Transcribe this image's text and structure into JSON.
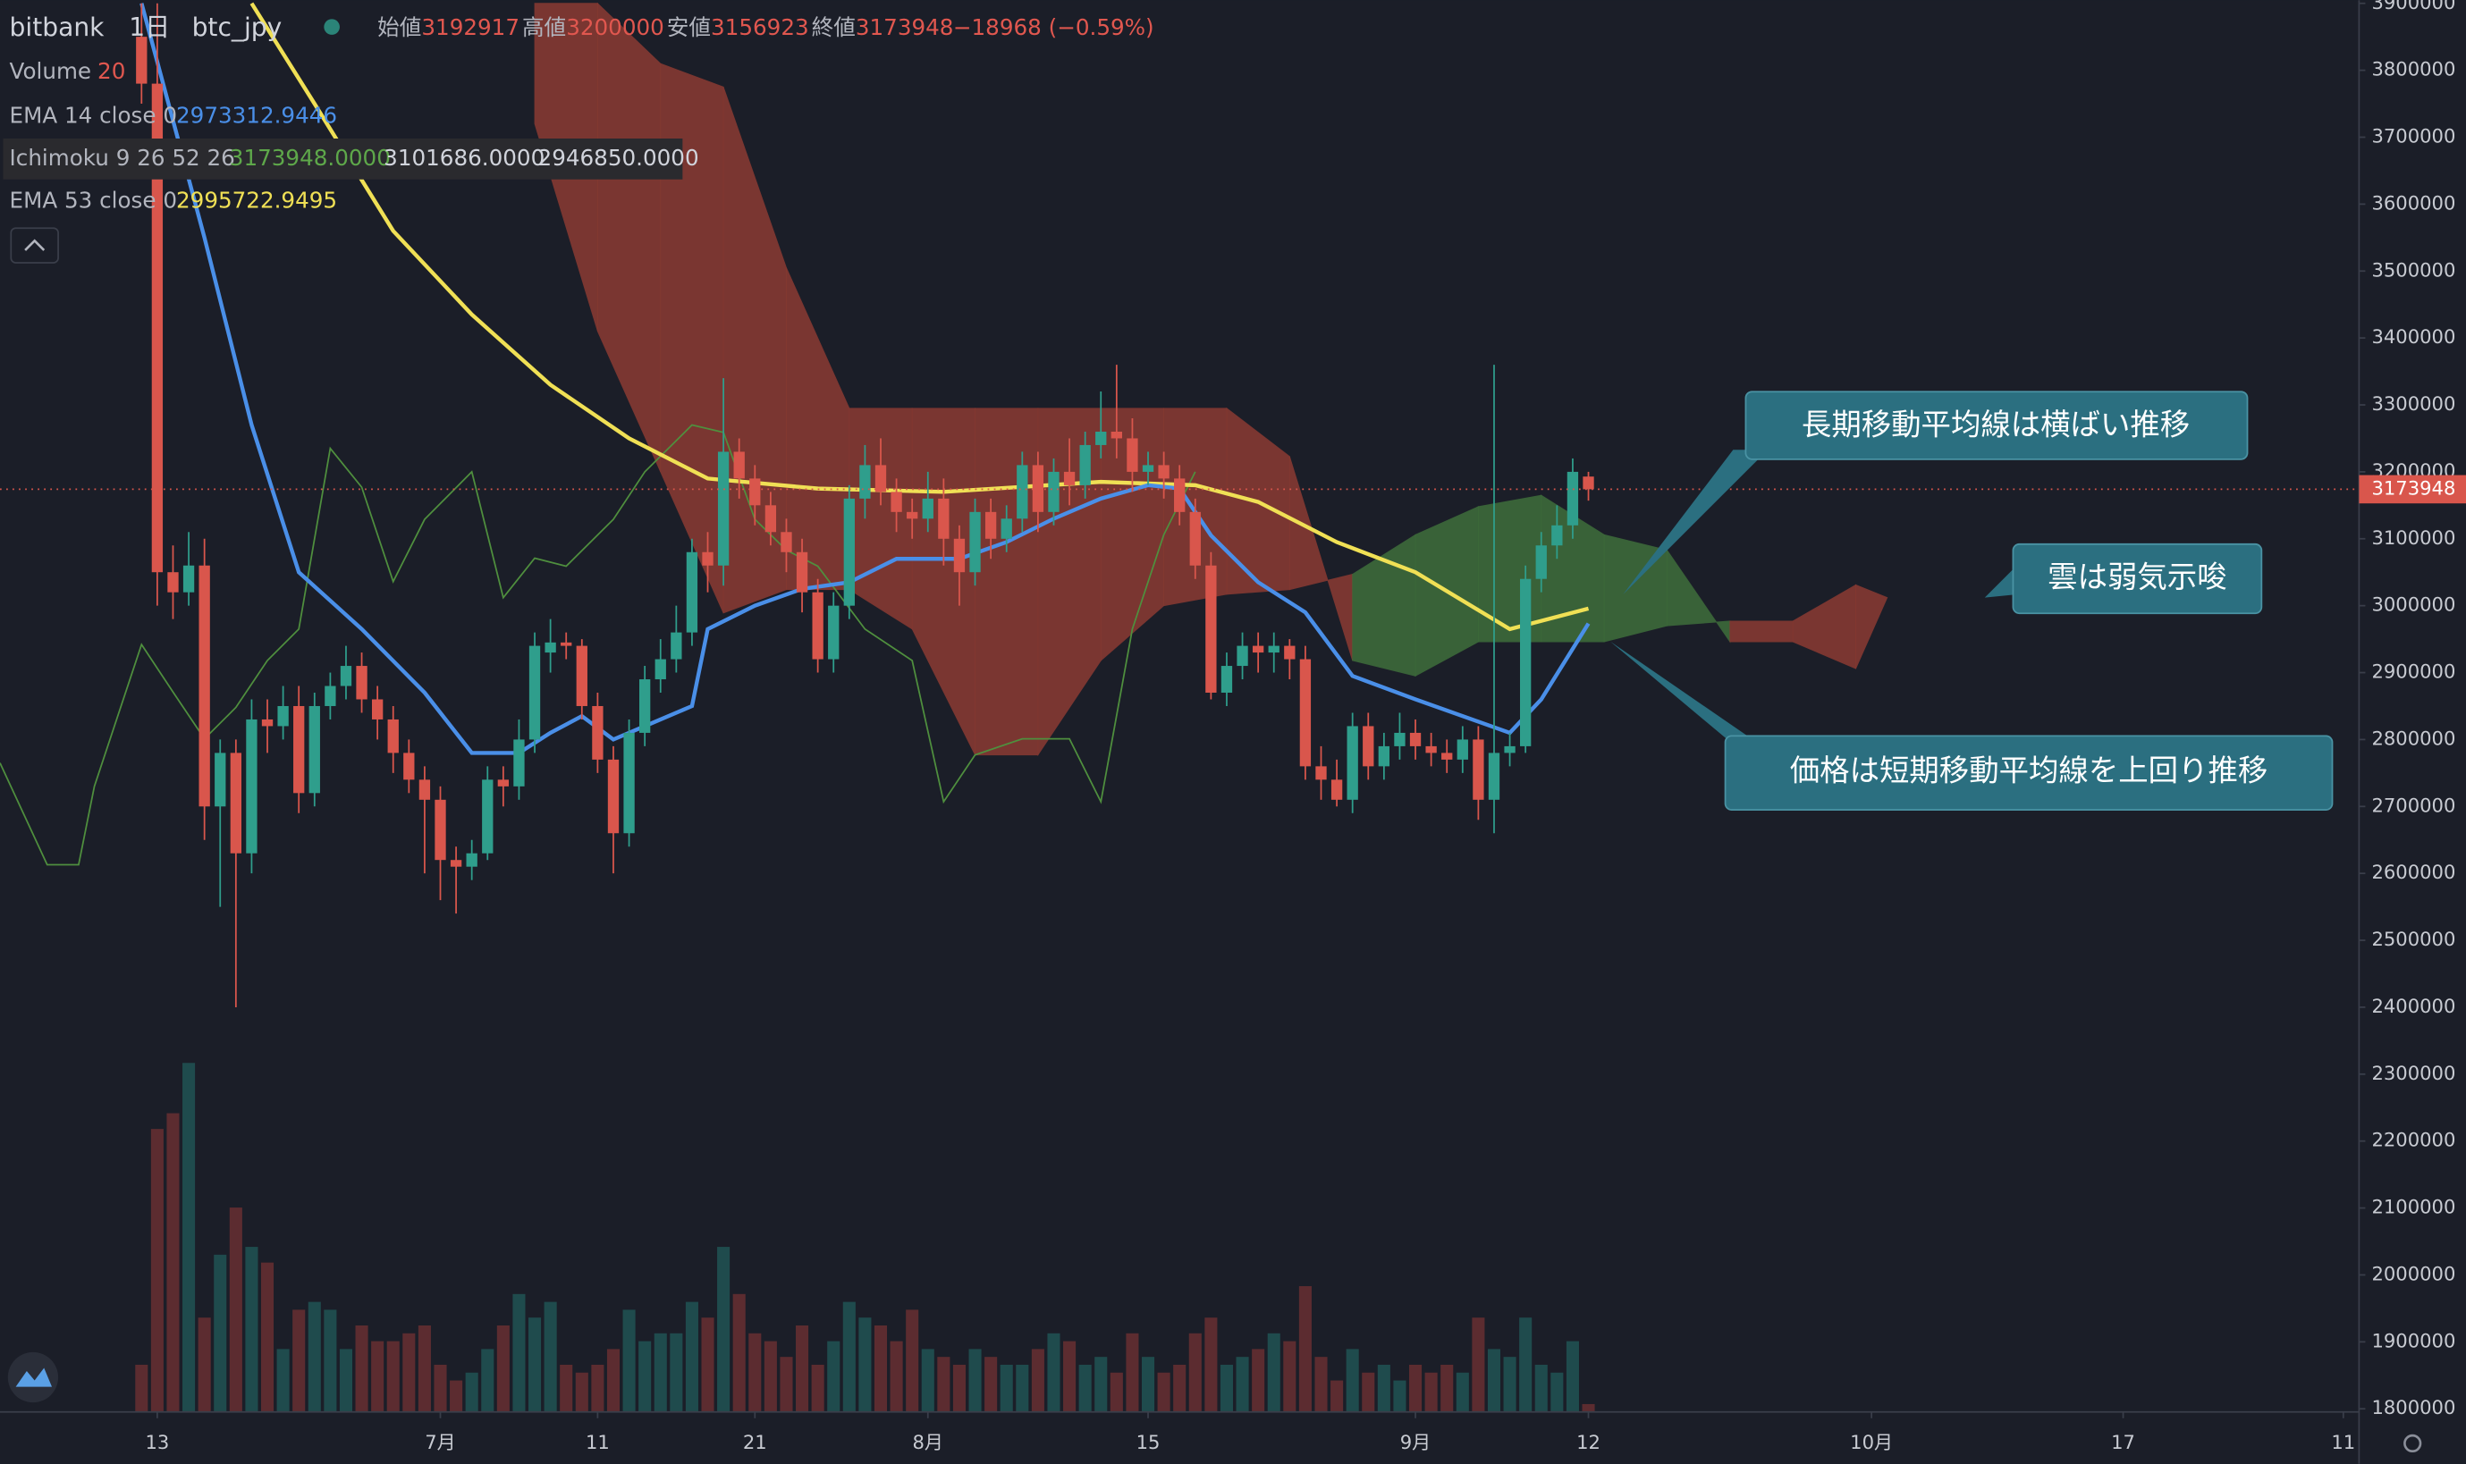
{
  "chart_data": {
    "type": "candlestick",
    "exchange": "bitbank",
    "interval": "1日",
    "symbol": "btc_jpy",
    "ohlc_labels": [
      "始値",
      "高値",
      "安値",
      "終値"
    ],
    "change": "−18968 (−0.59%)",
    "up_color": "#2f9e8c",
    "down_color": "#d9564c",
    "x": [
      0,
      1,
      2,
      3,
      4,
      5,
      6,
      7,
      8,
      9,
      10,
      11,
      12,
      13,
      14,
      15,
      16,
      17,
      18,
      19,
      20,
      21,
      22,
      23,
      24,
      25,
      26,
      27,
      28,
      29,
      30,
      31,
      32,
      33,
      34,
      35,
      36,
      37,
      38,
      39,
      40,
      41,
      42,
      43,
      44,
      45,
      46,
      47,
      48,
      49,
      50,
      51,
      52,
      53,
      54,
      55,
      56,
      57,
      58,
      59,
      60,
      61,
      62,
      63,
      64,
      65,
      66,
      67,
      68,
      69,
      70,
      71,
      72,
      73,
      74,
      75,
      76,
      77,
      78,
      79,
      80,
      81,
      82,
      83,
      84,
      85,
      86,
      87,
      88,
      89,
      90,
      91,
      92
    ],
    "open": [
      3850000,
      3780000,
      3050000,
      3020000,
      3060000,
      2700000,
      2780000,
      2630000,
      2830000,
      2820000,
      2850000,
      2720000,
      2850000,
      2880000,
      2910000,
      2860000,
      2830000,
      2780000,
      2740000,
      2710000,
      2620000,
      2610000,
      2630000,
      2740000,
      2730000,
      2800000,
      2930000,
      2945000,
      2940000,
      2850000,
      2770000,
      2660000,
      2810000,
      2890000,
      2920000,
      2960000,
      3080000,
      3060000,
      3230000,
      3190000,
      3150000,
      3110000,
      3080000,
      3020000,
      2920000,
      3000000,
      3160000,
      3210000,
      3170000,
      3140000,
      3130000,
      3160000,
      3100000,
      3050000,
      3140000,
      3100000,
      3130000,
      3210000,
      3140000,
      3200000,
      3180000,
      3240000,
      3260000,
      3250000,
      3200000,
      3210000,
      3190000,
      3140000,
      3060000,
      2870000,
      2910000,
      2940000,
      2930000,
      2940000,
      2920000,
      2760000,
      2740000,
      2710000,
      2820000,
      2760000,
      2790000,
      2810000,
      2790000,
      2780000,
      2770000,
      2800000,
      2710000,
      2780000,
      2790000,
      3040000,
      3090000,
      3120000,
      3192917
    ],
    "high": [
      3900000,
      3900000,
      3090000,
      3110000,
      3100000,
      2800000,
      2800000,
      2860000,
      2860000,
      2880000,
      2880000,
      2870000,
      2900000,
      2940000,
      2930000,
      2880000,
      2850000,
      2800000,
      2760000,
      2730000,
      2640000,
      2650000,
      2760000,
      2760000,
      2830000,
      2960000,
      2980000,
      2960000,
      2950000,
      2870000,
      2790000,
      2830000,
      2910000,
      2950000,
      3000000,
      3100000,
      3110000,
      3340000,
      3250000,
      3210000,
      3170000,
      3130000,
      3100000,
      3040000,
      3020000,
      3180000,
      3240000,
      3250000,
      3190000,
      3160000,
      3200000,
      3190000,
      3120000,
      3160000,
      3160000,
      3150000,
      3230000,
      3230000,
      3220000,
      3250000,
      3260000,
      3320000,
      3360000,
      3280000,
      3230000,
      3230000,
      3210000,
      3160000,
      3080000,
      2930000,
      2960000,
      2960000,
      2960000,
      2950000,
      2940000,
      2790000,
      2770000,
      2840000,
      2840000,
      2810000,
      2840000,
      2830000,
      2810000,
      2800000,
      2820000,
      2820000,
      3360000,
      2810000,
      3060000,
      3110000,
      3150000,
      3220000,
      3200000
    ],
    "low": [
      3750000,
      3000000,
      2980000,
      3000000,
      2650000,
      2550000,
      2400000,
      2600000,
      2780000,
      2800000,
      2690000,
      2700000,
      2830000,
      2860000,
      2840000,
      2800000,
      2750000,
      2720000,
      2600000,
      2560000,
      2540000,
      2590000,
      2620000,
      2700000,
      2710000,
      2780000,
      2900000,
      2920000,
      2830000,
      2750000,
      2600000,
      2640000,
      2790000,
      2870000,
      2900000,
      2940000,
      3020000,
      3030000,
      3160000,
      3120000,
      3090000,
      3050000,
      2990000,
      2900000,
      2900000,
      2980000,
      3130000,
      3150000,
      3110000,
      3100000,
      3110000,
      3060000,
      3000000,
      3030000,
      3070000,
      3080000,
      3110000,
      3110000,
      3120000,
      3150000,
      3160000,
      3220000,
      3220000,
      3170000,
      3180000,
      3160000,
      3120000,
      3040000,
      2860000,
      2850000,
      2890000,
      2900000,
      2900000,
      2890000,
      2740000,
      2710000,
      2700000,
      2690000,
      2740000,
      2740000,
      2770000,
      2770000,
      2760000,
      2750000,
      2750000,
      2680000,
      2660000,
      2760000,
      2780000,
      3020000,
      3070000,
      3100000,
      3156923
    ],
    "close": [
      3780000,
      3050000,
      3020000,
      3060000,
      2700000,
      2780000,
      2630000,
      2830000,
      2820000,
      2850000,
      2720000,
      2850000,
      2880000,
      2910000,
      2860000,
      2830000,
      2780000,
      2740000,
      2710000,
      2620000,
      2610000,
      2630000,
      2740000,
      2730000,
      2800000,
      2940000,
      2945000,
      2940000,
      2850000,
      2770000,
      2660000,
      2810000,
      2890000,
      2920000,
      2960000,
      3080000,
      3060000,
      3230000,
      3190000,
      3150000,
      3110000,
      3080000,
      3020000,
      2920000,
      3000000,
      3160000,
      3210000,
      3170000,
      3140000,
      3130000,
      3160000,
      3100000,
      3050000,
      3140000,
      3100000,
      3130000,
      3210000,
      3140000,
      3200000,
      3180000,
      3240000,
      3260000,
      3250000,
      3200000,
      3210000,
      3190000,
      3140000,
      3060000,
      2870000,
      2910000,
      2940000,
      2930000,
      2940000,
      2920000,
      2760000,
      2740000,
      2710000,
      2820000,
      2760000,
      2790000,
      2810000,
      2790000,
      2780000,
      2770000,
      2800000,
      2710000,
      2780000,
      2790000,
      3040000,
      3090000,
      3120000,
      3200000,
      3173948
    ],
    "volume": {
      "name": "Volume",
      "length_label": "20",
      "up_color": "#1f4b4d",
      "down_color": "#5c2c30",
      "lim": [
        0,
        250
      ],
      "values": [
        30,
        180,
        190,
        222,
        60,
        100,
        130,
        105,
        95,
        40,
        65,
        70,
        65,
        40,
        55,
        45,
        45,
        50,
        55,
        30,
        20,
        25,
        40,
        55,
        75,
        60,
        70,
        30,
        25,
        30,
        40,
        65,
        45,
        50,
        50,
        70,
        60,
        105,
        75,
        50,
        45,
        35,
        55,
        30,
        45,
        70,
        60,
        55,
        45,
        65,
        40,
        35,
        30,
        40,
        35,
        30,
        30,
        40,
        50,
        45,
        30,
        35,
        25,
        50,
        35,
        25,
        30,
        50,
        60,
        30,
        35,
        40,
        50,
        45,
        80,
        35,
        20,
        40,
        25,
        30,
        20,
        30,
        25,
        30,
        25,
        60,
        40,
        35,
        60,
        30,
        25,
        45,
        5
      ]
    },
    "ema14": {
      "name": "EMA 14 close 0",
      "color": "#4a8fe8",
      "x": [
        0,
        4,
        7,
        10,
        14,
        18,
        21,
        24,
        26,
        28,
        30,
        32,
        35,
        36,
        39,
        42,
        45,
        48,
        52,
        55,
        58,
        61,
        64,
        66,
        68,
        71,
        74,
        77,
        81,
        84,
        87,
        89,
        92
      ],
      "values": [
        3900000,
        3550000,
        3270000,
        3050000,
        2965000,
        2870000,
        2780000,
        2780000,
        2810000,
        2835000,
        2800000,
        2820000,
        2850000,
        2965000,
        3000000,
        3025000,
        3035000,
        3070000,
        3070000,
        3095000,
        3130000,
        3160000,
        3180000,
        3175000,
        3105000,
        3035000,
        2990000,
        2895000,
        2860000,
        2835000,
        2810000,
        2860000,
        2973312.9446
      ]
    },
    "ema53": {
      "name": "EMA 53 close 0",
      "color": "#f0e055",
      "x": [
        7,
        11,
        16,
        21,
        26,
        31,
        36,
        43,
        51,
        61,
        67,
        71,
        76,
        81,
        87,
        92
      ],
      "values": [
        3900000,
        3750000,
        3560000,
        3435000,
        3330000,
        3250000,
        3190000,
        3175000,
        3170000,
        3185000,
        3180000,
        3155000,
        3095000,
        3050000,
        2965000,
        2995722.9495
      ]
    },
    "ichimoku": {
      "name": "Ichimoku 9 26 52 26",
      "value_labels": [
        "3173948.0000",
        "3101686.0000",
        "2946850.0000"
      ],
      "lagging_color": "#4f8f3e",
      "up_cloud": "#3d6a3a",
      "down_cloud": "#853932",
      "lagging_x": [
        -9,
        -6,
        -4,
        -3,
        0,
        2,
        4,
        6,
        8,
        10,
        12,
        14,
        16,
        18,
        21,
        23,
        25,
        27,
        30,
        32,
        35,
        37,
        39,
        41,
        43,
        46,
        49,
        51,
        53,
        56,
        59,
        61,
        63,
        65,
        67
      ],
      "lagging": [
        2765000,
        2613000,
        2613000,
        2730000,
        2942000,
        2871000,
        2801000,
        2848000,
        2918000,
        2965000,
        3235000,
        3177000,
        3036000,
        3129000,
        3200000,
        3012000,
        3071000,
        3059000,
        3129000,
        3200000,
        3270000,
        3259000,
        3129000,
        3083000,
        3059000,
        2965000,
        2918000,
        2707000,
        2777000,
        2801000,
        2801000,
        2707000,
        2965000,
        3106000,
        3200000
      ],
      "cloud_x": [
        25,
        29,
        33,
        37,
        41,
        45,
        49,
        53,
        57,
        61,
        65,
        69,
        73,
        77,
        81,
        85,
        89,
        93,
        97,
        101,
        105,
        109,
        111
      ],
      "span_a": [
        3720000,
        3410000,
        3200000,
        2989000,
        3024000,
        3024000,
        2965000,
        2777000,
        2777000,
        2918000,
        3000000,
        3017000,
        3024000,
        3047000,
        3106000,
        3148000,
        3165000,
        3106000,
        3083000,
        2946000,
        2946000,
        2906000,
        3012000
      ],
      "span_b": [
        3900000,
        3900000,
        3810000,
        3775000,
        3505000,
        3295000,
        3295000,
        3295000,
        3295000,
        3295000,
        3295000,
        3295000,
        3223000,
        2918000,
        2895000,
        2946000,
        2946000,
        2946000,
        2970000,
        2977000,
        2977000,
        3031000,
        3012000
      ]
    },
    "xlim": [
      -9,
      141
    ],
    "xticks": [
      {
        "value": 1,
        "label": "13"
      },
      {
        "value": 19,
        "label": "7月"
      },
      {
        "value": 29,
        "label": "11"
      },
      {
        "value": 39,
        "label": "21"
      },
      {
        "value": 50,
        "label": "8月"
      },
      {
        "value": 64,
        "label": "15"
      },
      {
        "value": 81,
        "label": "9月"
      },
      {
        "value": 92,
        "label": "12"
      },
      {
        "value": 110,
        "label": "10月"
      },
      {
        "value": 126,
        "label": "17"
      },
      {
        "value": 140,
        "label": "11"
      }
    ],
    "ylim": [
      1795300,
      3904700
    ],
    "yticks": [
      1800000,
      1900000,
      2000000,
      2100000,
      2200000,
      2300000,
      2400000,
      2500000,
      2600000,
      2700000,
      2800000,
      2900000,
      3000000,
      3100000,
      3200000,
      3300000,
      3400000,
      3500000,
      3600000,
      3700000,
      3800000,
      3900000
    ],
    "annotations": [
      "長期移動平均線は横ばい推移",
      "雲は弱気示唆",
      "価格は短期移動平均線を上回り推移"
    ]
  }
}
